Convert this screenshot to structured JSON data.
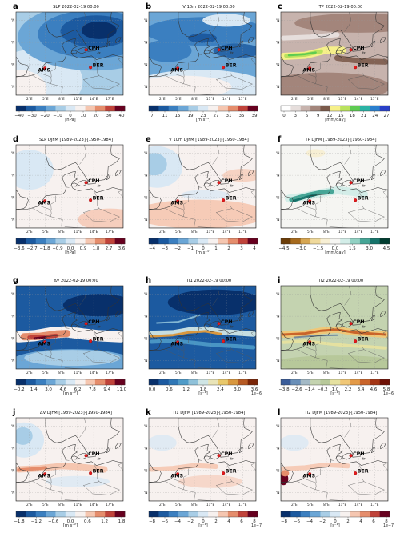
{
  "cities": [
    {
      "name": "CPH",
      "lon": 12.57,
      "lat": 55.68
    },
    {
      "name": "BER",
      "lon": 13.4,
      "lat": 52.52
    },
    {
      "name": "AMS",
      "lon": 4.9,
      "lat": 52.37
    }
  ],
  "lat_ticks": [
    "61°N",
    "57°N",
    "53°N",
    "49°N"
  ],
  "lon_ticks": [
    "2°E",
    "5°E",
    "8°E",
    "11°E",
    "14°E",
    "17°E"
  ],
  "panels": [
    {
      "letter": "a",
      "title": "SLP 2022-02-19 00:00",
      "field": "slp",
      "colors": [
        "#08306b",
        "#1c5aa0",
        "#3b7fc0",
        "#6ba6d6",
        "#a8cde6",
        "#d9e8f4",
        "#f7f1ef",
        "#f5c6b0",
        "#e58d6c",
        "#c0433a",
        "#67001f"
      ],
      "ticks": [
        "−40",
        "−30",
        "−20",
        "−10",
        "0",
        "10",
        "20",
        "30",
        "40"
      ],
      "unit": "[hPa]",
      "exp": ""
    },
    {
      "letter": "b",
      "title": "V 10m 2022-02-19 00:00",
      "field": "wind",
      "colors": [
        "#08306b",
        "#1c5aa0",
        "#3b7fc0",
        "#6ba6d6",
        "#a8cde6",
        "#d9e8f4",
        "#f7f1ef",
        "#f5c6b0",
        "#e58d6c",
        "#c0433a",
        "#67001f"
      ],
      "ticks": [
        "7",
        "11",
        "15",
        "19",
        "23",
        "27",
        "31",
        "35",
        "39"
      ],
      "unit": "[m s⁻¹]",
      "exp": ""
    },
    {
      "letter": "c",
      "title": "TP 2022-02-19 00:00",
      "field": "tp",
      "colors": [
        "#ffffff",
        "#e6dedc",
        "#c7b3ad",
        "#a3857b",
        "#7b5a4b",
        "#f6f08a",
        "#b9e25e",
        "#5ecb52",
        "#2bb3a5",
        "#2a7fce",
        "#2940c8"
      ],
      "ticks": [
        "0",
        "3",
        "6",
        "9",
        "12",
        "15",
        "18",
        "21",
        "24",
        "27"
      ],
      "unit": "[mm/day]",
      "exp": ""
    },
    {
      "letter": "d",
      "title": "SLP DJFM [1989-2023]-[1950-1984]",
      "field": "slp_d",
      "colors": [
        "#08306b",
        "#1c5aa0",
        "#3b7fc0",
        "#6ba6d6",
        "#a8cde6",
        "#d9e8f4",
        "#f7f1ef",
        "#f5c6b0",
        "#e58d6c",
        "#c0433a",
        "#67001f"
      ],
      "ticks": [
        "−3.6",
        "−2.7",
        "−1.8",
        "−0.9",
        "0.0",
        "0.9",
        "1.8",
        "2.7",
        "3.6"
      ],
      "unit": "[hPa]",
      "exp": ""
    },
    {
      "letter": "e",
      "title": "V 10m DJFM [1989-2023]-[1950-1984]",
      "field": "wind_d",
      "colors": [
        "#08306b",
        "#1c5aa0",
        "#3b7fc0",
        "#6ba6d6",
        "#a8cde6",
        "#d9e8f4",
        "#f7f1ef",
        "#f5c6b0",
        "#e58d6c",
        "#c0433a",
        "#67001f"
      ],
      "ticks": [
        "−4",
        "−3",
        "−2",
        "−1",
        "0",
        "1",
        "2",
        "3",
        "4"
      ],
      "unit": "[m s⁻¹]",
      "exp": ""
    },
    {
      "letter": "f",
      "title": "TP DJFM [1989-2023]-[1950-1984]",
      "field": "tp_d",
      "colors": [
        "#6b3d07",
        "#a66a1d",
        "#d6a652",
        "#efd99c",
        "#f7efd4",
        "#f5f5f2",
        "#d3ede8",
        "#92d1c3",
        "#46a596",
        "#15736a",
        "#003c30"
      ],
      "ticks": [
        "−4.5",
        "−3.0",
        "−1.5",
        "0.0",
        "1.5",
        "3.0",
        "4.5"
      ],
      "unit": "[mm/day]",
      "exp": ""
    },
    {
      "letter": "g",
      "title": "ΔV 2022-02-19 00:00",
      "field": "dv",
      "colors": [
        "#08306b",
        "#1c5aa0",
        "#3b7fc0",
        "#6ba6d6",
        "#a8cde6",
        "#d9e8f4",
        "#f7f1ef",
        "#f5c6b0",
        "#e58d6c",
        "#c0433a",
        "#67001f"
      ],
      "ticks": [
        "−0.2",
        "1.4",
        "3.0",
        "4.6",
        "6.2",
        "7.8",
        "9.4",
        "11.0"
      ],
      "unit": "[m s⁻²]",
      "exp": ""
    },
    {
      "letter": "h",
      "title": "TI1 2022-02-19 00:00",
      "field": "ti1",
      "colors": [
        "#08306b",
        "#1c5aa0",
        "#2f77b6",
        "#4f9bc8",
        "#8fc1d9",
        "#cfe5e5",
        "#e9e4b8",
        "#e8c86b",
        "#d8973f",
        "#b65a23",
        "#7a2508"
      ],
      "ticks": [
        "0.0",
        "0.6",
        "1.2",
        "1.8",
        "2.4",
        "3.0",
        "3.6"
      ],
      "unit": "[s⁻¹]",
      "exp": "1e−6"
    },
    {
      "letter": "i",
      "title": "TI2 2022-02-19 00:00",
      "field": "ti2",
      "colors": [
        "#3b5d9a",
        "#6a8fb8",
        "#a3b9c6",
        "#c4d3b0",
        "#b7c89a",
        "#e5e1a0",
        "#f0c777",
        "#e39a48",
        "#c9642a",
        "#a33515",
        "#6e1005"
      ],
      "ticks": [
        "−3.8",
        "−2.6",
        "−1.4",
        "−0.2",
        "1.0",
        "2.2",
        "3.4",
        "4.6",
        "5.8"
      ],
      "unit": "[s⁻¹]",
      "exp": "1e−6"
    },
    {
      "letter": "j",
      "title": "ΔV DJFM [1989-2023]-[1950-1984]",
      "field": "dv_d",
      "colors": [
        "#08306b",
        "#1c5aa0",
        "#3b7fc0",
        "#6ba6d6",
        "#a8cde6",
        "#d9e8f4",
        "#f7f1ef",
        "#f5c6b0",
        "#e58d6c",
        "#c0433a",
        "#67001f"
      ],
      "ticks": [
        "−1.8",
        "−1.2",
        "−0.6",
        "0.0",
        "0.6",
        "1.2",
        "1.8"
      ],
      "unit": "[m s⁻²]",
      "exp": ""
    },
    {
      "letter": "k",
      "title": "TI1 DJFM [1989-2023]-[1950-1984]",
      "field": "ti1_d",
      "colors": [
        "#08306b",
        "#1c5aa0",
        "#3b7fc0",
        "#6ba6d6",
        "#a8cde6",
        "#d9e8f4",
        "#f7f1ef",
        "#f5c6b0",
        "#e58d6c",
        "#c0433a",
        "#67001f"
      ],
      "ticks": [
        "−8",
        "−6",
        "−4",
        "−2",
        "0",
        "2",
        "4",
        "6",
        "8"
      ],
      "unit": "[s⁻¹]",
      "exp": "1e−7"
    },
    {
      "letter": "l",
      "title": "TI2 DJFM [1989-2023]-[1950-1984]",
      "field": "ti2_d",
      "colors": [
        "#08306b",
        "#1c5aa0",
        "#3b7fc0",
        "#6ba6d6",
        "#a8cde6",
        "#d9e8f4",
        "#f7f1ef",
        "#f5c6b0",
        "#e58d6c",
        "#c0433a",
        "#67001f"
      ],
      "ticks": [
        "−8",
        "−6",
        "−4",
        "−2",
        "0",
        "2",
        "4",
        "6",
        "8"
      ],
      "unit": "[s⁻¹]",
      "exp": "1e−7"
    }
  ]
}
